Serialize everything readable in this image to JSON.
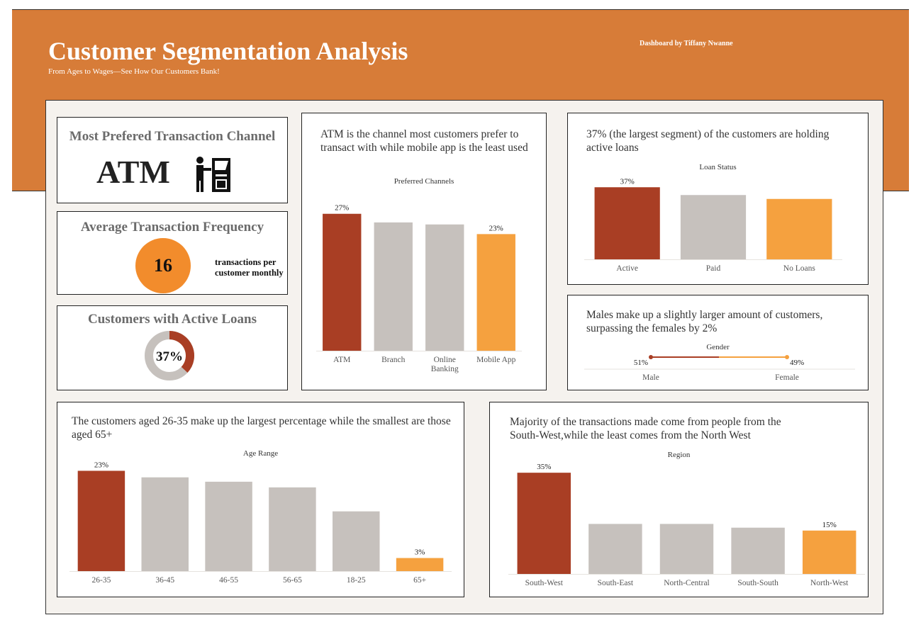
{
  "header": {
    "title": "Customer Segmentation Analysis",
    "subtitle": "From Ages to Wages—See How Our Customers Bank!",
    "byline": "Dashboard by Tiffany Nwanne"
  },
  "colors": {
    "banner": "#d77c38",
    "highlight_dark": "#a93e24",
    "highlight_light": "#f5a13f",
    "neutral": "#c6c1bd",
    "panel_bg": "#f5f2ee"
  },
  "kpis": {
    "channel": {
      "title": "Most Prefered Transaction Channel",
      "value": "ATM",
      "icon": "atm-person-icon"
    },
    "frequency": {
      "title": "Average Transaction Frequency",
      "value": "16",
      "caption": "transactions per customer monthly"
    },
    "loans": {
      "title": "Customers with Active Loans",
      "value": "37%",
      "fraction": 0.37
    }
  },
  "insights": {
    "channels": "ATM is the channel most customers prefer to transact with while mobile app is the least used",
    "loans": "37% (the largest segment) of the customers are holding active loans",
    "gender": "Males make up a slightly larger amount of customers, surpassing the females by 2%",
    "age": "The customers aged 26-35 make up the largest percentage while the smallest are those aged 65+",
    "region": "Majority of the transactions made come from people from the South-West,while the least comes from the North West"
  },
  "chart_data": [
    {
      "id": "channels",
      "type": "bar",
      "title": "Preferred Channels",
      "categories": [
        "ATM",
        "Branch",
        "Online Banking",
        "Mobile App"
      ],
      "values": [
        27,
        25.3,
        24.9,
        23
      ],
      "labels": [
        "27%",
        "",
        "",
        "23%"
      ],
      "ylim": [
        0,
        28.5
      ]
    },
    {
      "id": "loans",
      "type": "bar",
      "title": "Loan Status",
      "categories": [
        "Active",
        "Paid",
        "No Loans"
      ],
      "values": [
        37,
        33,
        31
      ],
      "labels": [
        "37%",
        "",
        ""
      ],
      "ylim": [
        0,
        40
      ]
    },
    {
      "id": "gender",
      "type": "line",
      "title": "Gender",
      "categories": [
        "Male",
        "Female"
      ],
      "values": [
        51,
        49
      ],
      "labels": [
        "51%",
        "49%"
      ]
    },
    {
      "id": "age",
      "type": "bar",
      "title": "Age Range",
      "categories": [
        "26-35",
        "36-45",
        "46-55",
        "56-65",
        "18-25",
        "65+"
      ],
      "values": [
        23,
        21.5,
        20.5,
        19.2,
        13.7,
        3
      ],
      "labels": [
        "23%",
        "",
        "",
        "",
        "",
        "3%"
      ],
      "ylim": [
        0,
        24.7
      ]
    },
    {
      "id": "region",
      "type": "bar",
      "title": "Region",
      "categories": [
        "South-West",
        "South-East",
        "North-Central",
        "South-South",
        "North-West"
      ],
      "values": [
        35,
        17.3,
        17.3,
        16,
        15
      ],
      "labels": [
        "35%",
        "",
        "",
        "",
        "15%"
      ],
      "ylim": [
        0,
        37
      ]
    }
  ]
}
